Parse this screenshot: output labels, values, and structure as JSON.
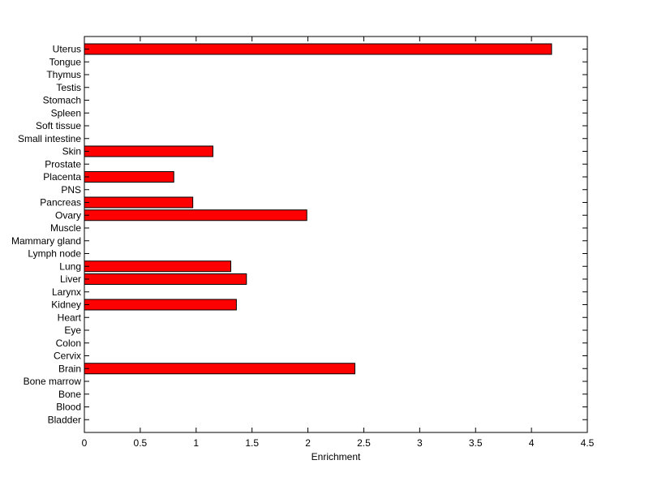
{
  "chart_data": {
    "type": "bar",
    "orientation": "horizontal",
    "categories": [
      "Uterus",
      "Tongue",
      "Thymus",
      "Testis",
      "Stomach",
      "Spleen",
      "Soft tissue",
      "Small intestine",
      "Skin",
      "Prostate",
      "Placenta",
      "PNS",
      "Pancreas",
      "Ovary",
      "Muscle",
      "Mammary gland",
      "Lymph node",
      "Lung",
      "Liver",
      "Larynx",
      "Kidney",
      "Heart",
      "Eye",
      "Colon",
      "Cervix",
      "Brain",
      "Bone marrow",
      "Bone",
      "Blood",
      "Bladder"
    ],
    "values": [
      4.18,
      0,
      0,
      0,
      0,
      0,
      0,
      0,
      1.15,
      0,
      0.8,
      0,
      0.97,
      1.99,
      0,
      0,
      0,
      1.31,
      1.45,
      0,
      1.36,
      0,
      0,
      0,
      0,
      2.42,
      0,
      0,
      0,
      0
    ],
    "xlabel": "Enrichment",
    "ylabel": "",
    "xlim": [
      0,
      4.5
    ],
    "xticks": [
      "0",
      "0.5",
      "1",
      "1.5",
      "2",
      "2.5",
      "3",
      "3.5",
      "4",
      "4.5"
    ],
    "grid": false,
    "bar_color": "#ff0000",
    "edge_color": "#000000"
  }
}
